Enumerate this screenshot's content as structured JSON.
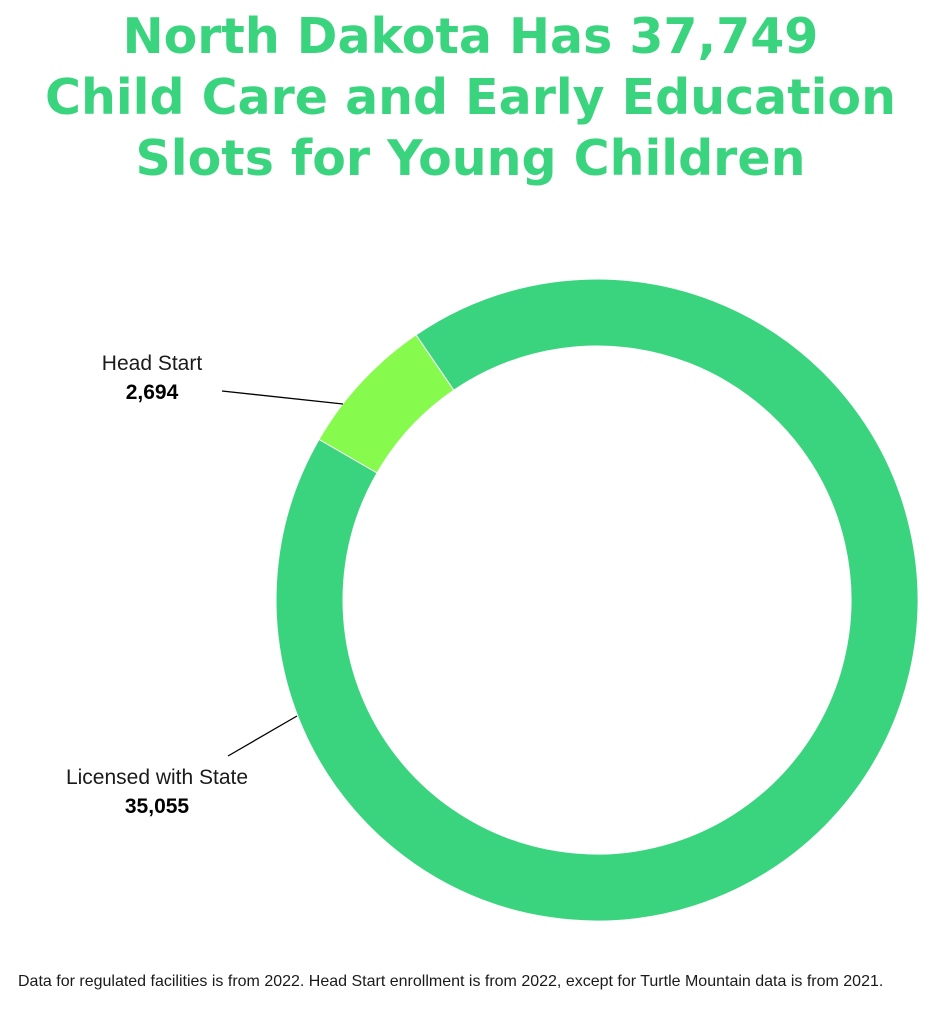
{
  "colors": {
    "title": "#3ad47e",
    "licensed": "#3ad47e",
    "head_start": "#86fb4e",
    "leader_line": "#000000"
  },
  "chart_data": {
    "type": "pie",
    "donut": true,
    "title_lines": [
      "North Dakota Has 37,749",
      "Child Care and Early Education",
      "Slots for Young Children"
    ],
    "total": 37749,
    "slices": [
      {
        "name": "Head Start",
        "value": 2694,
        "value_label": "2,694",
        "color": "#86fb4e"
      },
      {
        "name": "Licensed with State",
        "value": 35055,
        "value_label": "35,055",
        "color": "#3ad47e"
      }
    ],
    "legend": "none"
  },
  "footnote": "Data for regulated facilities is from 2022. Head Start enrollment is from 2022, except for Turtle Mountain data is from 2021."
}
